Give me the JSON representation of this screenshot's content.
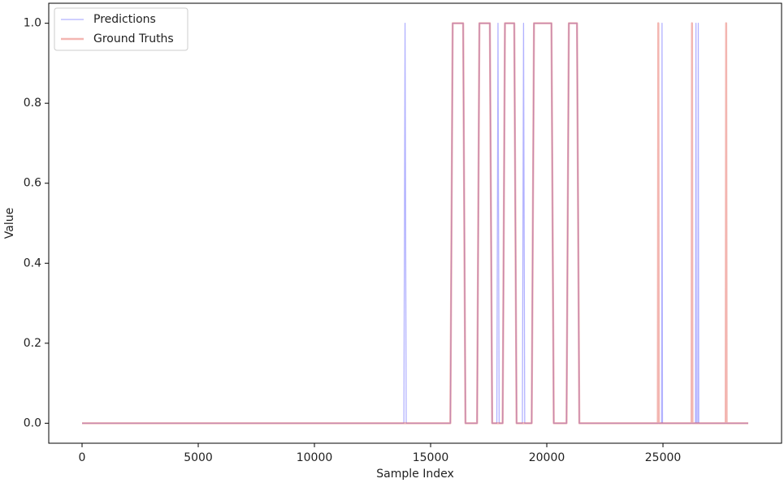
{
  "chart_data": {
    "type": "line",
    "xlabel": "Sample Index",
    "ylabel": "Value",
    "x": [
      0,
      13850,
      13900,
      13950,
      15850,
      15950,
      16400,
      16500,
      17000,
      17100,
      17550,
      17650,
      17850,
      17900,
      17950,
      18100,
      18200,
      18600,
      18700,
      18950,
      19000,
      19050,
      19350,
      19450,
      20200,
      20300,
      20850,
      20950,
      21300,
      21400,
      24780,
      24800,
      24820,
      24940,
      24960,
      24980,
      26230,
      26250,
      26270,
      26400,
      26420,
      26440,
      26500,
      26520,
      26540,
      27700,
      27720,
      27740,
      28670
    ],
    "series": [
      {
        "name": "Predictions",
        "color": "#0000ff",
        "values": [
          0,
          0,
          1,
          0,
          0,
          1,
          1,
          0,
          0,
          1,
          1,
          0,
          0,
          1,
          0,
          0,
          1,
          1,
          0,
          0,
          1,
          0,
          0,
          1,
          1,
          0,
          0,
          1,
          1,
          0,
          0,
          0,
          0,
          0,
          1,
          0,
          0,
          0,
          0,
          0,
          1,
          0,
          0,
          1,
          0,
          0,
          0,
          0,
          0
        ]
      },
      {
        "name": "Ground Truths",
        "color": "#e0483c",
        "values": [
          0,
          0,
          0,
          0,
          0,
          1,
          1,
          0,
          0,
          1,
          1,
          0,
          0,
          0,
          0,
          0,
          1,
          1,
          0,
          0,
          0,
          0,
          0,
          1,
          1,
          0,
          0,
          1,
          1,
          0,
          0,
          1,
          0,
          0,
          0,
          0,
          0,
          1,
          0,
          0,
          0,
          0,
          0,
          0,
          0,
          0,
          1,
          0,
          0
        ]
      }
    ],
    "xlim": [
      -1434,
      30104
    ],
    "xticks": [
      0,
      5000,
      10000,
      15000,
      20000,
      25000
    ],
    "ylim": [
      -0.05,
      1.05
    ],
    "yticks": [
      {
        "value": 0,
        "label": "0.0"
      },
      0.2,
      0.4,
      0.6,
      0.8,
      {
        "value": 1,
        "label": "1.0"
      }
    ],
    "legend": "upper-left"
  }
}
